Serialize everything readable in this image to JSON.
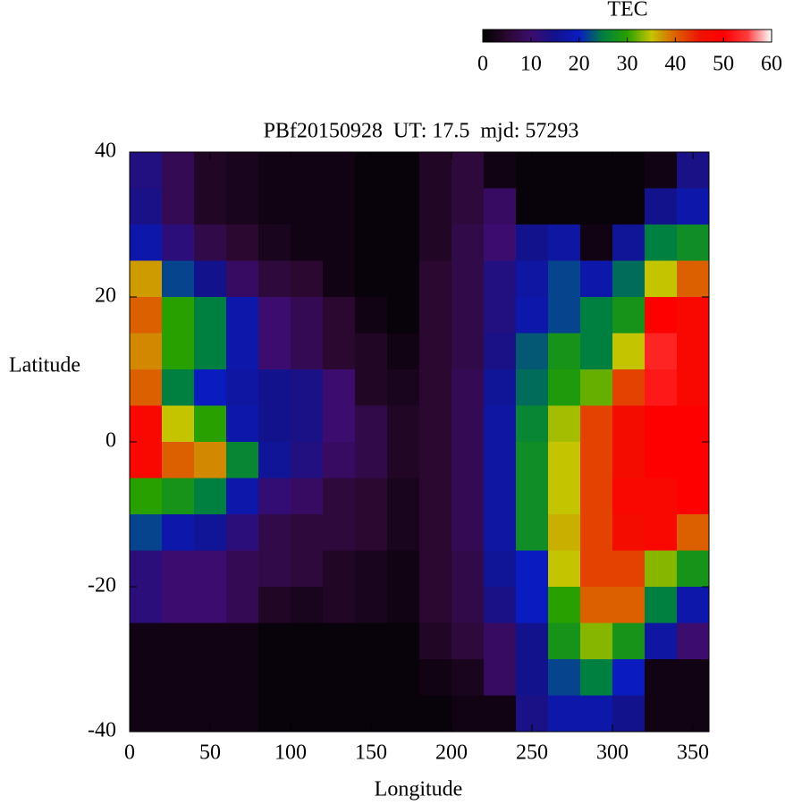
{
  "chart_data": {
    "type": "heatmap",
    "title": "PBf20150928  UT: 17.5  mjd: 57293",
    "xlabel": "Longitude",
    "ylabel": "Latitude",
    "xlim": [
      0,
      360
    ],
    "ylim": [
      -40,
      40
    ],
    "xticks": [
      0,
      50,
      100,
      150,
      200,
      250,
      300,
      350
    ],
    "yticks": [
      -40,
      -20,
      0,
      20,
      40
    ],
    "x": [
      10,
      30,
      50,
      70,
      90,
      110,
      130,
      150,
      170,
      190,
      210,
      230,
      250,
      270,
      290,
      310,
      330,
      350
    ],
    "y": [
      37.5,
      32.5,
      27.5,
      22.5,
      17.5,
      12.5,
      7.5,
      2.5,
      -2.5,
      -7.5,
      -12.5,
      -17.5,
      -22.5,
      -27.5,
      -32.5,
      -37.5
    ],
    "z": [
      [
        13,
        8,
        4,
        3,
        2,
        2,
        2,
        1,
        1,
        4,
        6,
        2,
        1,
        1,
        1,
        1,
        2,
        14
      ],
      [
        14,
        8,
        4,
        3,
        2,
        2,
        2,
        1,
        1,
        4,
        6,
        9,
        1,
        1,
        1,
        1,
        15,
        18
      ],
      [
        18,
        12,
        7,
        5,
        3,
        2,
        2,
        1,
        1,
        4,
        7,
        10,
        15,
        17,
        2,
        16,
        25,
        27
      ],
      [
        37,
        22,
        15,
        9,
        6,
        5,
        2,
        1,
        1,
        5,
        7,
        13,
        17,
        22,
        18,
        24,
        35,
        40
      ],
      [
        40,
        30,
        25,
        18,
        10,
        8,
        5,
        2,
        1,
        5,
        7,
        13,
        18,
        22,
        25,
        28,
        50,
        48
      ],
      [
        38,
        30,
        25,
        18,
        10,
        8,
        5,
        4,
        2,
        5,
        7,
        14,
        23,
        28,
        25,
        35,
        53,
        48
      ],
      [
        40,
        25,
        20,
        17,
        15,
        14,
        10,
        4,
        3,
        5,
        8,
        16,
        24,
        29,
        32,
        42,
        52,
        48
      ],
      [
        48,
        35,
        30,
        18,
        15,
        14,
        10,
        7,
        4,
        5,
        8,
        17,
        26,
        34,
        42,
        47,
        50,
        50
      ],
      [
        48,
        40,
        38,
        26,
        16,
        13,
        9,
        7,
        4,
        5,
        8,
        17,
        27,
        35,
        42,
        47,
        50,
        50
      ],
      [
        30,
        28,
        25,
        18,
        11,
        9,
        6,
        5,
        3,
        5,
        8,
        17,
        27,
        35,
        42,
        48,
        48,
        50
      ],
      [
        22,
        18,
        16,
        12,
        7,
        6,
        6,
        5,
        3,
        5,
        8,
        17,
        27,
        36,
        42,
        47,
        48,
        40
      ],
      [
        12,
        10,
        10,
        8,
        7,
        6,
        4,
        3,
        2,
        5,
        7,
        16,
        20,
        35,
        42,
        42,
        33,
        28
      ],
      [
        12,
        10,
        10,
        8,
        4,
        3,
        4,
        3,
        2,
        5,
        7,
        14,
        20,
        30,
        40,
        40,
        25,
        18
      ],
      [
        2,
        2,
        2,
        2,
        1,
        1,
        1,
        1,
        1,
        4,
        6,
        9,
        15,
        28,
        33,
        28,
        17,
        10
      ],
      [
        2,
        2,
        2,
        2,
        1,
        1,
        1,
        1,
        1,
        2,
        3,
        9,
        15,
        22,
        25,
        20,
        2,
        2
      ],
      [
        2,
        2,
        2,
        2,
        1,
        1,
        1,
        1,
        1,
        1,
        2,
        2,
        14,
        18,
        18,
        15,
        2,
        2
      ]
    ],
    "colorbar_label": "TEC",
    "cblim": [
      0,
      60
    ],
    "cbticks": [
      0,
      10,
      20,
      30,
      40,
      50,
      60
    ],
    "palette": [
      {
        "value": 0,
        "color": "#000000"
      },
      {
        "value": 5,
        "color": "#2a0830"
      },
      {
        "value": 10,
        "color": "#3c0c6e"
      },
      {
        "value": 15,
        "color": "#12128c"
      },
      {
        "value": 20,
        "color": "#0a1cc0"
      },
      {
        "value": 25,
        "color": "#008040"
      },
      {
        "value": 30,
        "color": "#28a000"
      },
      {
        "value": 35,
        "color": "#c4c400"
      },
      {
        "value": 40,
        "color": "#dc6000"
      },
      {
        "value": 45,
        "color": "#ee1400"
      },
      {
        "value": 50,
        "color": "#ff0000"
      },
      {
        "value": 55,
        "color": "#ff3c3c"
      },
      {
        "value": 60,
        "color": "#ffffff"
      }
    ]
  }
}
